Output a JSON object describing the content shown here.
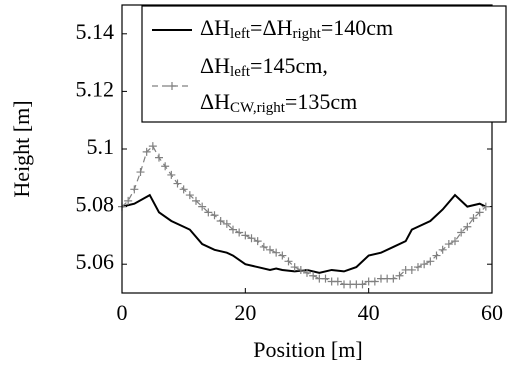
{
  "chart_data": {
    "type": "line",
    "xlabel": "Position [m]",
    "ylabel": "Height [m]",
    "xlim": [
      0,
      60
    ],
    "ylim": [
      5.05,
      5.15
    ],
    "xticks": [
      0,
      20,
      40,
      60
    ],
    "yticks": [
      5.06,
      5.08,
      5.1,
      5.12,
      5.14
    ],
    "grid": false,
    "legend": "upper right",
    "series": [
      {
        "name": [
          [
            {
              "text": "ΔH"
            },
            {
              "sub": "left"
            },
            {
              "text": "=ΔH"
            },
            {
              "sub": "right"
            },
            {
              "text": "=140cm"
            }
          ]
        ],
        "color": "#000000",
        "dashed": false,
        "marker": null,
        "x": [
          0,
          2,
          4.5,
          6,
          8,
          10,
          11,
          13,
          15,
          17,
          18,
          20,
          22,
          24,
          25,
          26,
          28,
          30,
          32,
          34,
          36,
          38,
          40,
          42,
          44,
          46,
          47,
          50,
          52,
          54,
          56,
          58,
          59
        ],
        "values": [
          5.08,
          5.081,
          5.084,
          5.078,
          5.075,
          5.073,
          5.072,
          5.067,
          5.065,
          5.064,
          5.063,
          5.06,
          5.059,
          5.058,
          5.0585,
          5.058,
          5.0575,
          5.058,
          5.057,
          5.058,
          5.0575,
          5.059,
          5.063,
          5.064,
          5.066,
          5.068,
          5.072,
          5.075,
          5.079,
          5.084,
          5.08,
          5.081,
          5.08
        ]
      },
      {
        "name": [
          [
            {
              "text": "ΔH"
            },
            {
              "sub": "left"
            },
            {
              "text": "=145cm,"
            }
          ],
          [
            {
              "text": "ΔH"
            },
            {
              "sub": "CW,right"
            },
            {
              "text": "=135cm"
            }
          ]
        ],
        "color": "#808080",
        "dashed": true,
        "marker": "+",
        "x": [
          0,
          1,
          2,
          3,
          4,
          5,
          6,
          7,
          8,
          9,
          10,
          11,
          12,
          13,
          14,
          15,
          16,
          17,
          18,
          19,
          20,
          21,
          22,
          23,
          24,
          25,
          26,
          27,
          28,
          29,
          30,
          31,
          32,
          33,
          34,
          35,
          36,
          37,
          38,
          39,
          40,
          41,
          42,
          43,
          44,
          45,
          46,
          47,
          48,
          49,
          50,
          51,
          52,
          53,
          54,
          55,
          56,
          57,
          58,
          59
        ],
        "values": [
          5.08,
          5.082,
          5.086,
          5.092,
          5.099,
          5.101,
          5.097,
          5.094,
          5.091,
          5.088,
          5.086,
          5.084,
          5.082,
          5.08,
          5.078,
          5.077,
          5.075,
          5.074,
          5.072,
          5.071,
          5.07,
          5.069,
          5.068,
          5.066,
          5.065,
          5.064,
          5.063,
          5.061,
          5.059,
          5.058,
          5.057,
          5.056,
          5.055,
          5.055,
          5.054,
          5.054,
          5.053,
          5.053,
          5.053,
          5.053,
          5.054,
          5.054,
          5.055,
          5.055,
          5.055,
          5.056,
          5.058,
          5.058,
          5.059,
          5.06,
          5.061,
          5.063,
          5.065,
          5.067,
          5.068,
          5.071,
          5.073,
          5.076,
          5.078,
          5.08
        ]
      }
    ]
  }
}
